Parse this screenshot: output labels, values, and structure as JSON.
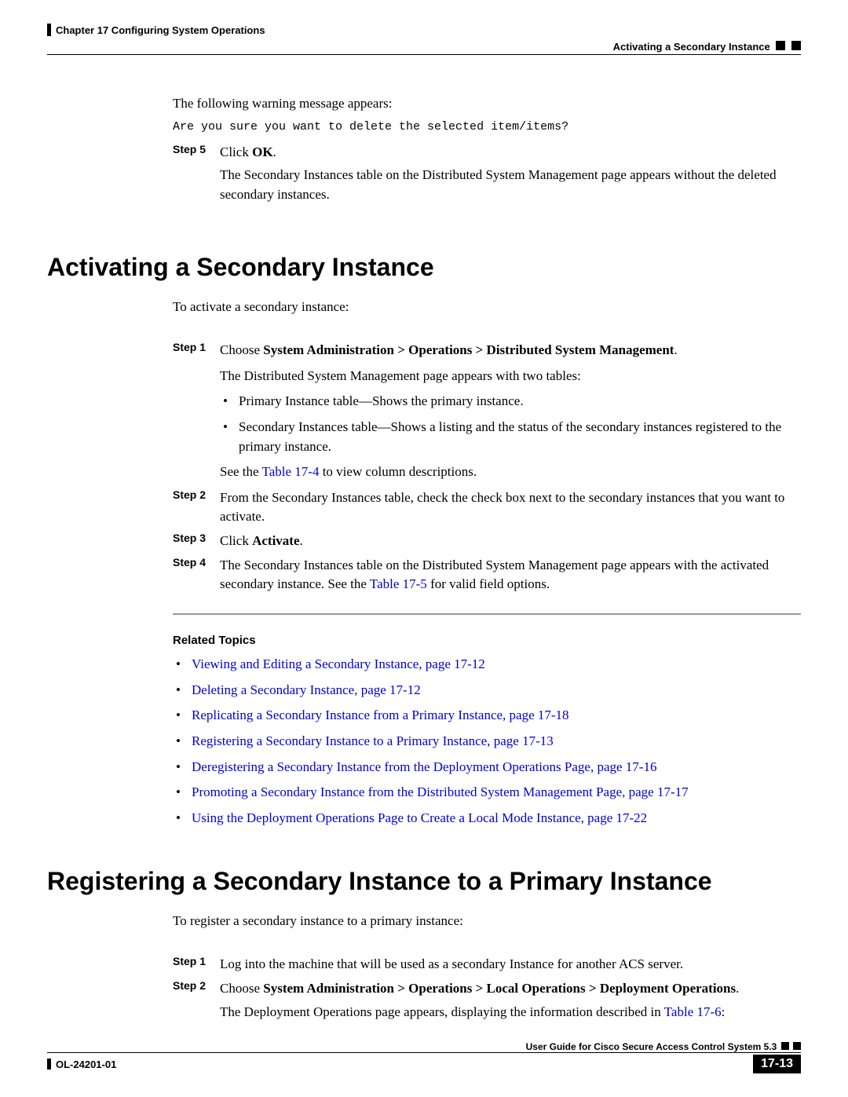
{
  "header": {
    "chapter": "Chapter 17    Configuring System Operations",
    "section": "Activating a Secondary Instance"
  },
  "intro": {
    "warn_intro": "The following warning message appears:",
    "warn_msg": "Are you sure you want to delete the selected item/items?",
    "step5_label": "Step 5",
    "step5_text_pre": "Click ",
    "step5_text_bold": "OK",
    "step5_text_post": ".",
    "step5_follow": "The Secondary Instances table on the Distributed System Management page appears without the deleted secondary instances."
  },
  "sectA": {
    "title": "Activating a Secondary Instance",
    "lead": "To activate a secondary instance:",
    "s1_label": "Step 1",
    "s1_pre": "Choose ",
    "s1_bold": "System Administration > Operations > Distributed System Management",
    "s1_post": ".",
    "s1_follow": "The Distributed System Management page appears with two tables:",
    "s1_b1": "Primary Instance table—Shows the primary instance.",
    "s1_b2": "Secondary Instances table—Shows a listing and the status of the secondary instances registered to the primary instance.",
    "s1_see_pre": "See the ",
    "s1_see_link": "Table 17-4",
    "s1_see_post": " to view column descriptions.",
    "s2_label": "Step 2",
    "s2_text": "From the Secondary Instances table, check the check box next to the secondary instances that you want to activate.",
    "s3_label": "Step 3",
    "s3_pre": "Click ",
    "s3_bold": "Activate",
    "s3_post": ".",
    "s4_label": "Step 4",
    "s4_pre": "The Secondary Instances table on the Distributed System Management page appears with the activated secondary instance. See the ",
    "s4_link": "Table 17-5",
    "s4_post": " for valid field options."
  },
  "related": {
    "heading": "Related Topics",
    "items": [
      "Viewing and Editing a Secondary Instance, page 17-12",
      "Deleting a Secondary Instance, page 17-12",
      "Replicating a Secondary Instance from a Primary Instance, page 17-18",
      "Registering a Secondary Instance to a Primary Instance, page 17-13",
      "Deregistering a Secondary Instance from the Deployment Operations Page, page 17-16",
      "Promoting a Secondary Instance from the Distributed System Management Page, page 17-17",
      "Using the Deployment Operations Page to Create a Local Mode Instance, page 17-22"
    ]
  },
  "sectB": {
    "title": "Registering a Secondary Instance to a Primary Instance",
    "lead": "To register a secondary instance to a primary instance:",
    "s1_label": "Step 1",
    "s1_text": "Log into the machine that will be used as a secondary Instance for another ACS server.",
    "s2_label": "Step 2",
    "s2_pre": "Choose ",
    "s2_bold": "System Administration > Operations > Local Operations > Deployment Operations",
    "s2_post": ".",
    "s2_follow_pre": "The Deployment Operations page appears, displaying the information described in ",
    "s2_follow_link": "Table 17-6",
    "s2_follow_post": ":"
  },
  "footer": {
    "guide": "User Guide for Cisco Secure Access Control System 5.3",
    "doc": "OL-24201-01",
    "page": "17-13"
  }
}
